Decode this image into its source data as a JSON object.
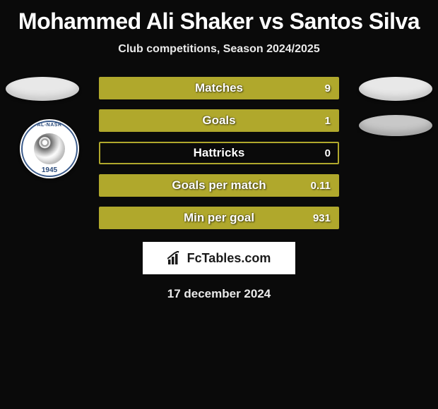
{
  "title": "Mohammed Ali Shaker vs Santos Silva",
  "subtitle": "Club competitions, Season 2024/2025",
  "date": "17 december 2024",
  "brand": "FcTables.com",
  "club_badge": {
    "year": "1945",
    "top_text": "AL-NASR"
  },
  "colors": {
    "bar_border": "#b0a82c",
    "bar_fill": "#b0a82c",
    "background": "#0a0a0a"
  },
  "bars": [
    {
      "label": "Matches",
      "value": "9",
      "fill_pct": 100
    },
    {
      "label": "Goals",
      "value": "1",
      "fill_pct": 100
    },
    {
      "label": "Hattricks",
      "value": "0",
      "fill_pct": 0
    },
    {
      "label": "Goals per match",
      "value": "0.11",
      "fill_pct": 100
    },
    {
      "label": "Min per goal",
      "value": "931",
      "fill_pct": 100
    }
  ]
}
